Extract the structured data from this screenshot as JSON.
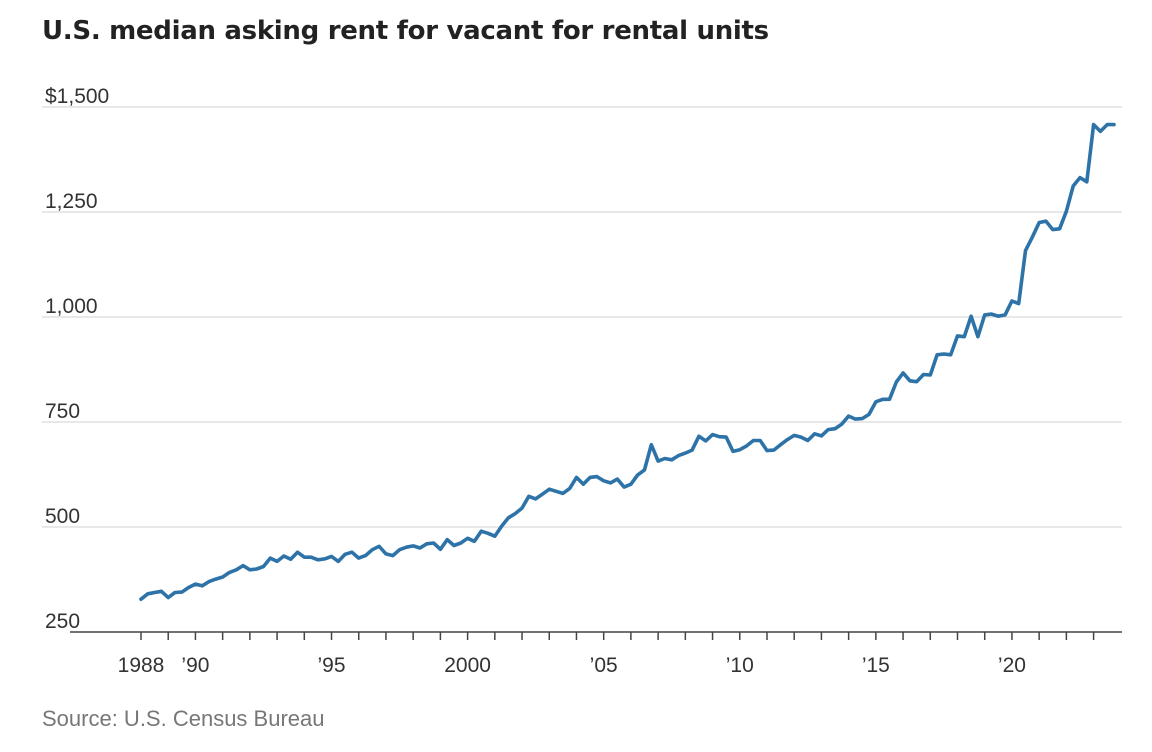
{
  "chart_data": {
    "type": "line",
    "title": "U.S. median asking rent for vacant for rental units",
    "source": "Source: U.S. Census Bureau",
    "xlabel": "",
    "ylabel": "",
    "xlim": [
      1988,
      2023.75
    ],
    "ylim": [
      250,
      1500
    ],
    "y_ticks": [
      {
        "value": 1500,
        "label": "$1,500"
      },
      {
        "value": 1250,
        "label": "1,250"
      },
      {
        "value": 1000,
        "label": "1,000"
      },
      {
        "value": 750,
        "label": "750"
      },
      {
        "value": 500,
        "label": "500"
      },
      {
        "value": 250,
        "label": "250"
      }
    ],
    "x_ticks": [
      {
        "value": 1988,
        "label": "1988"
      },
      {
        "value": 1990,
        "label": "’90"
      },
      {
        "value": 1995,
        "label": "’95"
      },
      {
        "value": 2000,
        "label": "2000"
      },
      {
        "value": 2005,
        "label": "’05"
      },
      {
        "value": 2010,
        "label": "’10"
      },
      {
        "value": 2015,
        "label": "’15"
      },
      {
        "value": 2020,
        "label": "’20"
      }
    ],
    "grid": true,
    "line_color": "#2e73a8",
    "series": [
      {
        "x": [
          1988.0,
          1988.25,
          1988.5,
          1988.75,
          1989.0,
          1989.25,
          1989.5,
          1989.75,
          1990.0,
          1990.25,
          1990.5,
          1990.75,
          1991.0,
          1991.25,
          1991.5,
          1991.75,
          1992.0,
          1992.25,
          1992.5,
          1992.75,
          1993.0,
          1993.25,
          1993.5,
          1993.75,
          1994.0,
          1994.25,
          1994.5,
          1994.75,
          1995.0,
          1995.25,
          1995.5,
          1995.75,
          1996.0,
          1996.25,
          1996.5,
          1996.75,
          1997.0,
          1997.25,
          1997.5,
          1997.75,
          1998.0,
          1998.25,
          1998.5,
          1998.75,
          1999.0,
          1999.25,
          1999.5,
          1999.75,
          2000.0,
          2000.25,
          2000.5,
          2000.75,
          2001.0,
          2001.25,
          2001.5,
          2001.75,
          2002.0,
          2002.25,
          2002.5,
          2002.75,
          2003.0,
          2003.25,
          2003.5,
          2003.75,
          2004.0,
          2004.25,
          2004.5,
          2004.75,
          2005.0,
          2005.25,
          2005.5,
          2005.75,
          2006.0,
          2006.25,
          2006.5,
          2006.75,
          2007.0,
          2007.25,
          2007.5,
          2007.75,
          2008.0,
          2008.25,
          2008.5,
          2008.75,
          2009.0,
          2009.25,
          2009.5,
          2009.75,
          2010.0,
          2010.25,
          2010.5,
          2010.75,
          2011.0,
          2011.25,
          2011.5,
          2011.75,
          2012.0,
          2012.25,
          2012.5,
          2012.75,
          2013.0,
          2013.25,
          2013.5,
          2013.75,
          2014.0,
          2014.25,
          2014.5,
          2014.75,
          2015.0,
          2015.25,
          2015.5,
          2015.75,
          2016.0,
          2016.25,
          2016.5,
          2016.75,
          2017.0,
          2017.25,
          2017.5,
          2017.75,
          2018.0,
          2018.25,
          2018.5,
          2018.75,
          2019.0,
          2019.25,
          2019.5,
          2019.75,
          2020.0,
          2020.25,
          2020.5,
          2020.75,
          2021.0,
          2021.25,
          2021.5,
          2021.75,
          2022.0,
          2022.25,
          2022.5,
          2022.75,
          2023.0,
          2023.25,
          2023.5,
          2023.75
        ],
        "y": [
          328,
          341,
          344,
          347,
          332,
          344,
          345,
          356,
          364,
          360,
          370,
          376,
          381,
          392,
          398,
          408,
          398,
          400,
          406,
          426,
          418,
          431,
          423,
          440,
          428,
          428,
          422,
          424,
          430,
          418,
          435,
          440,
          426,
          432,
          446,
          454,
          436,
          432,
          446,
          452,
          455,
          450,
          460,
          462,
          447,
          470,
          456,
          462,
          473,
          466,
          490,
          485,
          478,
          502,
          522,
          532,
          545,
          573,
          567,
          578,
          590,
          585,
          580,
          592,
          618,
          602,
          618,
          620,
          610,
          605,
          614,
          595,
          602,
          624,
          636,
          696,
          657,
          663,
          660,
          670,
          676,
          683,
          716,
          705,
          720,
          715,
          714,
          680,
          684,
          693,
          706,
          706,
          682,
          683,
          696,
          708,
          718,
          714,
          706,
          722,
          717,
          732,
          734,
          745,
          764,
          757,
          758,
          768,
          798,
          804,
          804,
          845,
          867,
          848,
          846,
          863,
          862,
          910,
          912,
          910,
          955,
          953,
          1002,
          953,
          1005,
          1007,
          1002,
          1005,
          1038,
          1032,
          1158,
          1190,
          1225,
          1228,
          1208,
          1210,
          1252,
          1312,
          1332,
          1322,
          1458,
          1442,
          1458,
          1458
        ]
      }
    ]
  }
}
